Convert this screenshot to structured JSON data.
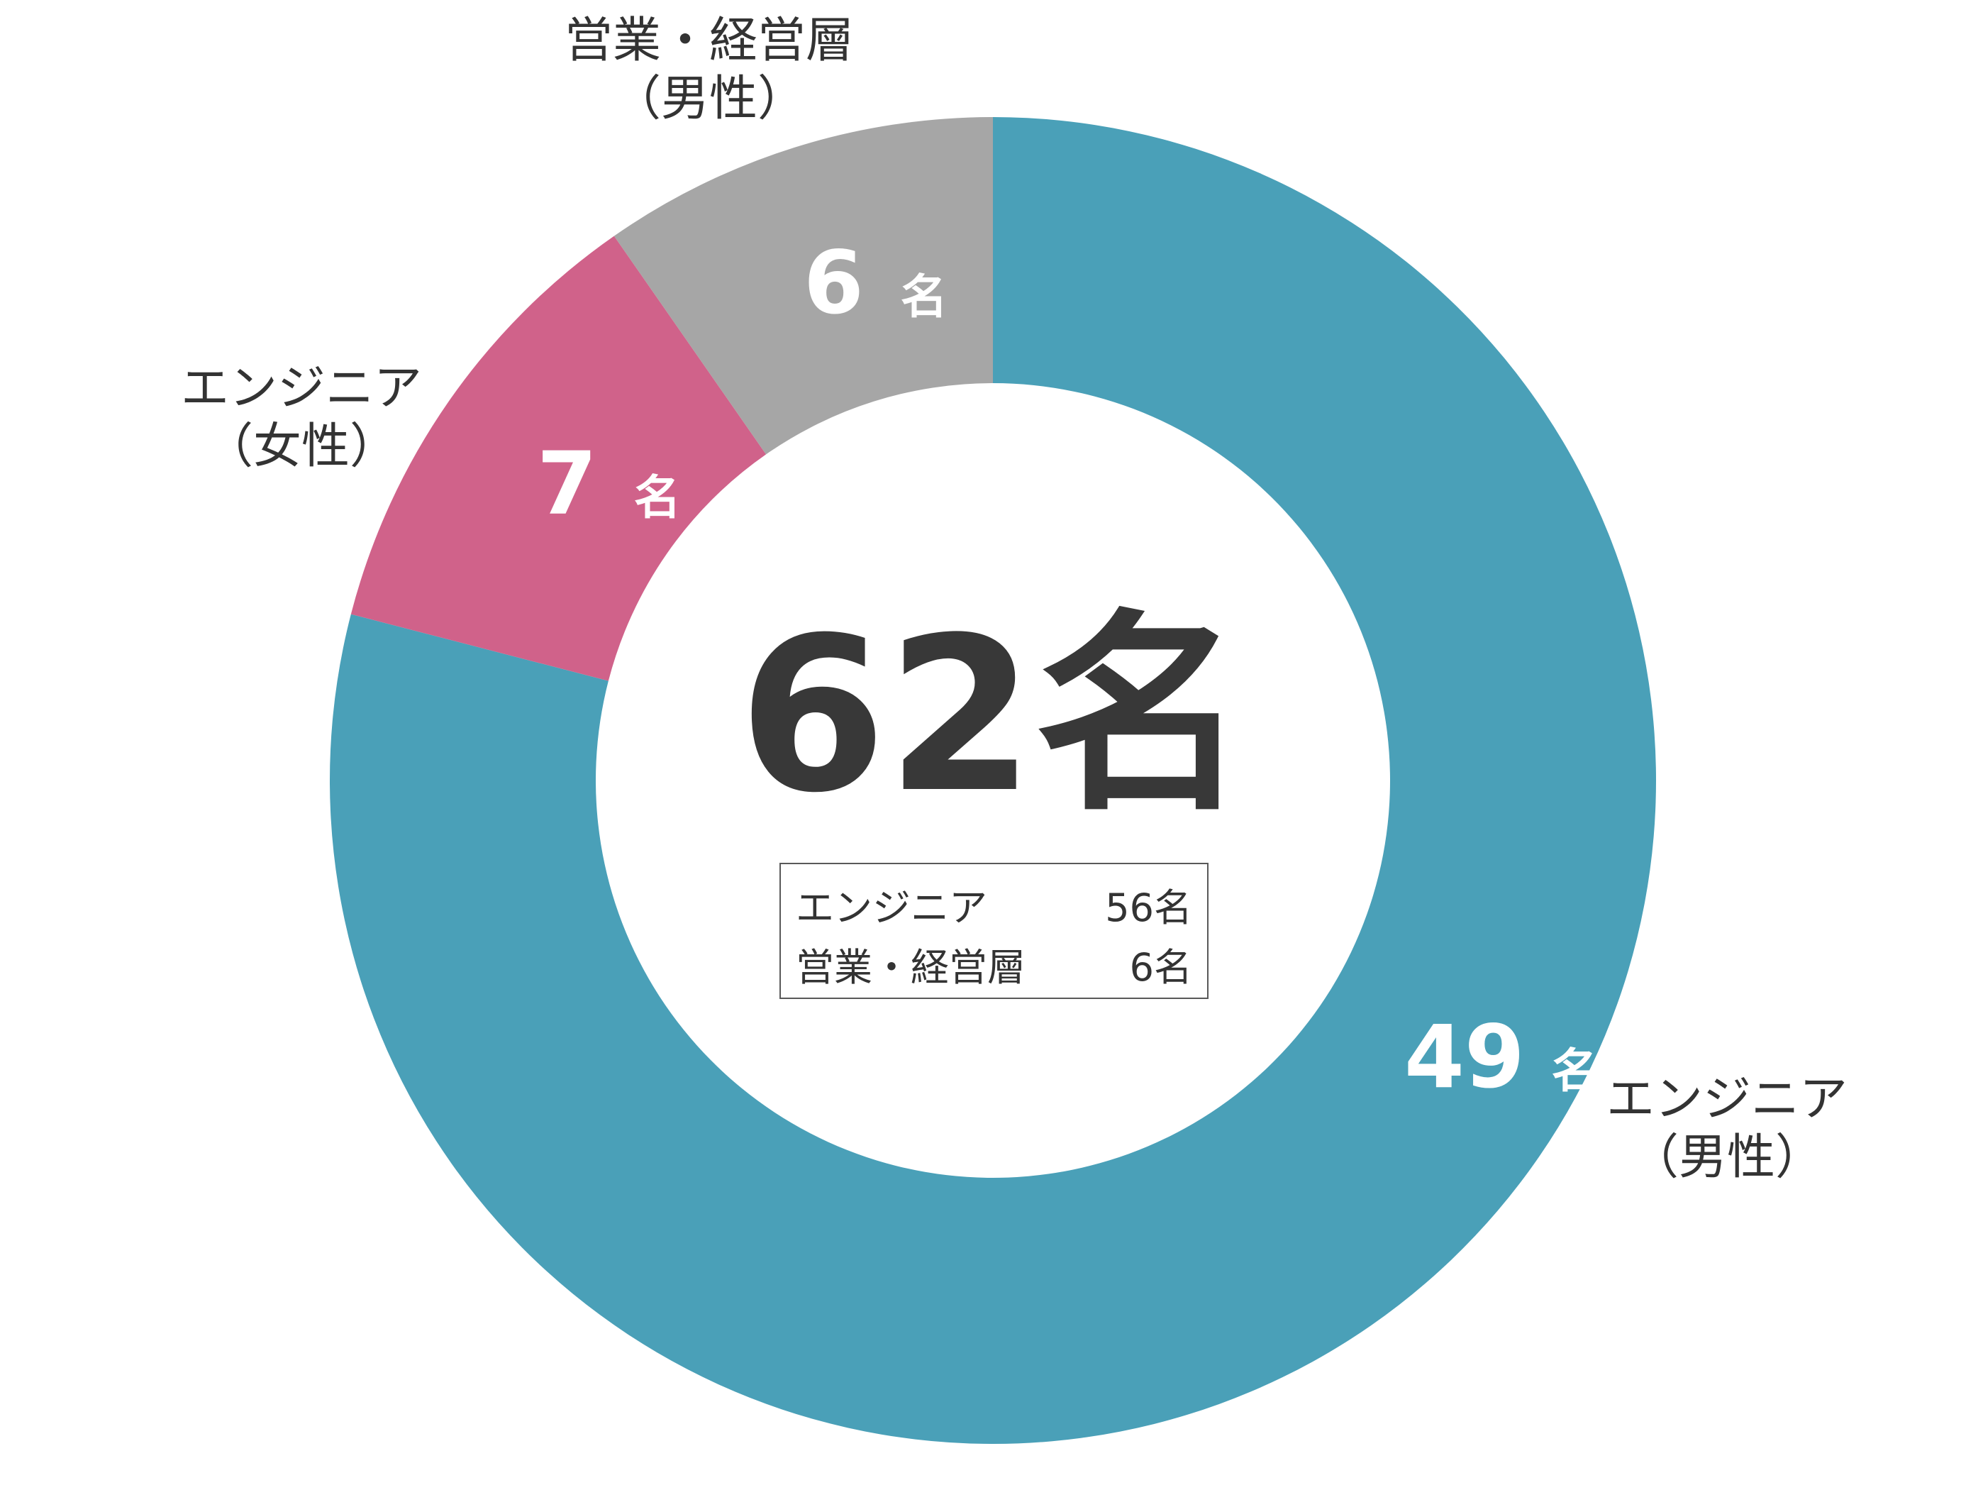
{
  "chart_data": {
    "type": "pie",
    "variant": "donut",
    "total_label": "62名",
    "unit": "名",
    "slices": [
      {
        "label_line1": "エンジニア",
        "label_line2": "（男性）",
        "value": 49,
        "color": "#4AA0B8"
      },
      {
        "label_line1": "エンジニア",
        "label_line2": "（女性）",
        "value": 7,
        "color": "#D0628A"
      },
      {
        "label_line1": "営業・経営層",
        "label_line2": "（男性）",
        "value": 6,
        "color": "#A6A6A6"
      }
    ],
    "summary": [
      {
        "label": "エンジニア",
        "value": "56名"
      },
      {
        "label": "営業・経営層",
        "value": "6名"
      }
    ]
  }
}
